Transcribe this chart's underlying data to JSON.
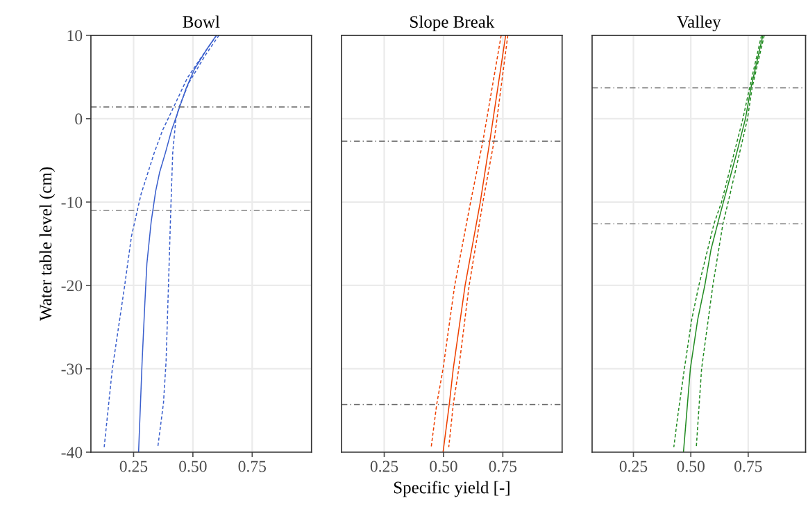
{
  "chart_data": [
    {
      "type": "line",
      "title": "Bowl",
      "ylabel": "Water table level (cm)",
      "xlim": [
        0.07,
        1.0
      ],
      "ylim": [
        -40,
        10
      ],
      "xticks": [
        {
          "value": 0.25,
          "label": "0.25"
        },
        {
          "value": 0.5,
          "label": "0.50"
        },
        {
          "value": 0.75,
          "label": "0.75"
        }
      ],
      "yticks": [
        -40,
        -30,
        -20,
        -10,
        0,
        10
      ],
      "grid": true,
      "series": [
        {
          "color": "#3a5fcd",
          "line_style": "solid",
          "x": [
            0.599,
            0.558,
            0.506,
            0.471,
            0.438,
            0.41,
            0.384,
            0.36,
            0.343,
            0.324,
            0.306,
            0.297,
            0.286,
            0.271
          ],
          "values": [
            10,
            8.3,
            5.9,
            3.6,
            0.9,
            -1.4,
            -4.1,
            -6.4,
            -8.7,
            -12.4,
            -17.4,
            -22.4,
            -29.1,
            -40
          ]
        },
        {
          "color": "#3a5fcd",
          "line_style": "dashed",
          "x": [
            0.6,
            0.541,
            0.477,
            0.419,
            0.372,
            0.337,
            0.281,
            0.241,
            0.212,
            0.16,
            0.126
          ],
          "values": [
            10,
            7.6,
            4.9,
            1.4,
            -1.4,
            -4.1,
            -9.1,
            -14.1,
            -20.1,
            -30.1,
            -39.4
          ]
        },
        {
          "color": "#3a5fcd",
          "line_style": "dashed",
          "x": [
            0.61,
            0.552,
            0.483,
            0.442,
            0.428,
            0.415,
            0.407,
            0.398,
            0.387,
            0.376,
            0.352
          ],
          "values": [
            10,
            7.6,
            4.3,
            1.4,
            -0.1,
            -4.1,
            -10.7,
            -19.1,
            -29.1,
            -34.1,
            -39.4
          ]
        }
      ],
      "ref_lines": [
        {
          "axis": "y",
          "value": 1.4,
          "color": "#666666",
          "line_style": "dashdot"
        },
        {
          "axis": "y",
          "value": -11.0,
          "color": "#666666",
          "line_style": "dashdot"
        }
      ]
    },
    {
      "type": "line",
      "title": "Slope Break",
      "xlabel": "Specific yield [-]",
      "xlim": [
        0.07,
        1.0
      ],
      "ylim": [
        -40,
        10
      ],
      "xticks": [
        {
          "value": 0.25,
          "label": "0.25"
        },
        {
          "value": 0.5,
          "label": "0.50"
        },
        {
          "value": 0.75,
          "label": "0.75"
        }
      ],
      "yticks": [
        -40,
        -30,
        -20,
        -10,
        0,
        10
      ],
      "grid": true,
      "tick_labels": "x",
      "series": [
        {
          "color": "#ee4000",
          "line_style": "solid",
          "x": [
            0.762,
            0.695,
            0.655,
            0.591,
            0.541,
            0.524,
            0.498
          ],
          "values": [
            10,
            -2.7,
            -10,
            -20,
            -30,
            -34.3,
            -40
          ]
        },
        {
          "color": "#ee4000",
          "line_style": "dashed",
          "x": [
            0.743,
            0.666,
            0.614,
            0.547,
            0.498,
            0.471,
            0.448
          ],
          "values": [
            10,
            -2.7,
            -10,
            -20,
            -30,
            -34.3,
            -39.4
          ]
        },
        {
          "color": "#ee4000",
          "line_style": "dashed",
          "x": [
            0.771,
            0.713,
            0.666,
            0.608,
            0.564,
            0.541,
            0.522
          ],
          "values": [
            10,
            -2.7,
            -10,
            -20,
            -30,
            -34.3,
            -39.4
          ]
        }
      ],
      "ref_lines": [
        {
          "axis": "y",
          "value": -2.7,
          "color": "#666666",
          "line_style": "dashdot"
        },
        {
          "axis": "y",
          "value": -34.3,
          "color": "#666666",
          "line_style": "dashdot"
        }
      ]
    },
    {
      "type": "line",
      "title": "Valley",
      "xlim": [
        0.07,
        1.0
      ],
      "ylim": [
        -40,
        10
      ],
      "xticks": [
        {
          "value": 0.25,
          "label": "0.25"
        },
        {
          "value": 0.5,
          "label": "0.50"
        },
        {
          "value": 0.75,
          "label": "0.75"
        }
      ],
      "yticks": [
        -40,
        -30,
        -20,
        -10,
        0,
        10
      ],
      "grid": true,
      "tick_labels": "x",
      "series": [
        {
          "color": "#228b22",
          "line_style": "solid",
          "x": [
            0.814,
            0.762,
            0.738,
            0.7,
            0.642,
            0.617,
            0.588,
            0.561,
            0.53,
            0.498,
            0.481,
            0.468
          ],
          "values": [
            10,
            3.7,
            0,
            -4.1,
            -10,
            -12.6,
            -15.7,
            -20,
            -24.1,
            -30,
            -35.7,
            -40
          ]
        },
        {
          "color": "#228b22",
          "line_style": "dashed",
          "x": [
            0.808,
            0.756,
            0.727,
            0.634,
            0.601,
            0.535,
            0.504,
            0.472,
            0.443,
            0.426
          ],
          "values": [
            10,
            3.7,
            0,
            -10,
            -12.6,
            -20,
            -24.1,
            -30,
            -35.7,
            -39.4
          ]
        },
        {
          "color": "#228b22",
          "line_style": "dashed",
          "x": [
            0.82,
            0.767,
            0.747,
            0.663,
            0.64,
            0.596,
            0.547,
            0.533,
            0.524
          ],
          "values": [
            10,
            3.7,
            0,
            -10,
            -12.6,
            -20,
            -30,
            -35.7,
            -39.4
          ]
        }
      ],
      "ref_lines": [
        {
          "axis": "y",
          "value": 3.7,
          "color": "#666666",
          "line_style": "dashdot"
        },
        {
          "axis": "y",
          "value": -12.6,
          "color": "#666666",
          "line_style": "dashdot"
        }
      ]
    }
  ]
}
